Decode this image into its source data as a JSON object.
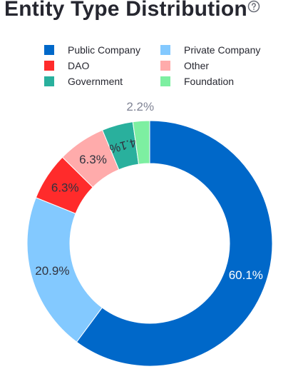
{
  "header": {
    "title": "Entity Type Distribution",
    "help_icon": "question-circle-icon"
  },
  "chart_data": {
    "type": "pie",
    "donut": true,
    "legend_position": "top",
    "categories": [
      "Public Company",
      "Private Company",
      "DAO",
      "Other",
      "Government",
      "Foundation"
    ],
    "values": [
      60.1,
      20.9,
      6.3,
      6.3,
      4.1,
      2.2
    ],
    "labels": [
      "60.1%",
      "20.9%",
      "6.3%",
      "6.3%",
      "4.1%",
      "2.2%"
    ],
    "colors": [
      "#0068c9",
      "#83c9ff",
      "#ff2b2b",
      "#ffabab",
      "#29b09d",
      "#7defa1"
    ],
    "label_colors": [
      "#ffffff",
      "#31333f",
      "#31333f",
      "#31333f",
      "#31333f",
      "#808495"
    ]
  }
}
